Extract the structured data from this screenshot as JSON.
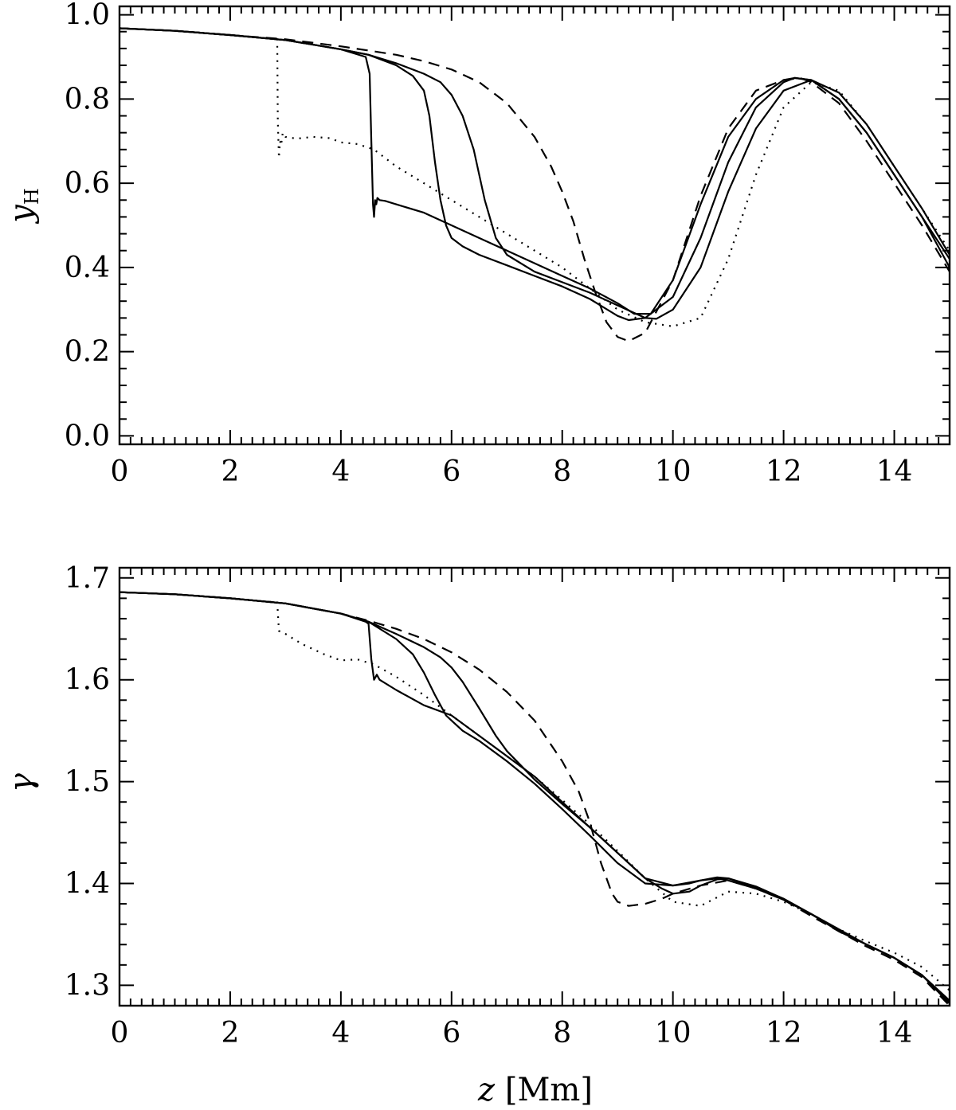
{
  "chart_data": [
    {
      "type": "line",
      "title": "",
      "xlabel": "",
      "ylabel": "y",
      "ylabel_subscript": "H",
      "xlim": [
        0,
        15
      ],
      "ylim": [
        -0.02,
        1.02
      ],
      "x_ticks": [
        0,
        2,
        4,
        6,
        8,
        10,
        12,
        14
      ],
      "x_tick_labels": [
        "0",
        "2",
        "4",
        "6",
        "8",
        "10",
        "12",
        "14"
      ],
      "y_ticks": [
        0.0,
        0.2,
        0.4,
        0.6,
        0.8,
        1.0
      ],
      "y_tick_labels": [
        "0.0",
        "0.2",
        "0.4",
        "0.6",
        "0.8",
        "1.0"
      ],
      "legend": "none",
      "grid": false,
      "series": [
        {
          "style": "dotted",
          "x": [
            0,
            1,
            2,
            2.85,
            2.86,
            2.88,
            2.9,
            2.92,
            2.95,
            3.0,
            3.2,
            3.5,
            3.8,
            4.0,
            4.3,
            4.6,
            5.0,
            5.5,
            6.0,
            6.5,
            7.0,
            7.5,
            8.0,
            8.5,
            9.0,
            9.5,
            10.0,
            10.5,
            11.0,
            11.5,
            12.0,
            12.5,
            13.0,
            13.5,
            14.0,
            14.5,
            15.0
          ],
          "y": [
            0.968,
            0.962,
            0.952,
            0.942,
            0.75,
            0.66,
            0.7,
            0.69,
            0.72,
            0.71,
            0.706,
            0.71,
            0.707,
            0.697,
            0.693,
            0.68,
            0.64,
            0.6,
            0.56,
            0.52,
            0.48,
            0.44,
            0.4,
            0.35,
            0.3,
            0.27,
            0.26,
            0.28,
            0.42,
            0.62,
            0.78,
            0.84,
            0.82,
            0.74,
            0.64,
            0.54,
            0.44
          ]
        },
        {
          "style": "solid",
          "x": [
            0,
            1,
            2,
            3,
            4,
            4.45,
            4.52,
            4.55,
            4.58,
            4.6,
            4.62,
            4.64,
            4.66,
            4.7,
            4.8,
            5.0,
            5.5,
            6.0,
            6.5,
            7.0,
            7.5,
            8.0,
            8.5,
            9.0,
            9.3,
            9.6,
            10.0,
            10.5,
            11.0,
            11.5,
            12.0,
            12.2,
            12.5,
            13.0,
            13.5,
            14.0,
            14.5,
            15.0
          ],
          "y": [
            0.968,
            0.962,
            0.952,
            0.94,
            0.918,
            0.9,
            0.86,
            0.7,
            0.55,
            0.52,
            0.56,
            0.55,
            0.565,
            0.56,
            0.558,
            0.55,
            0.53,
            0.5,
            0.47,
            0.44,
            0.41,
            0.38,
            0.35,
            0.315,
            0.29,
            0.29,
            0.37,
            0.55,
            0.71,
            0.8,
            0.845,
            0.85,
            0.845,
            0.8,
            0.72,
            0.62,
            0.52,
            0.4
          ]
        },
        {
          "style": "solid",
          "x": [
            0,
            1,
            2,
            3,
            4,
            4.5,
            5.0,
            5.3,
            5.5,
            5.6,
            5.7,
            5.8,
            5.9,
            6.0,
            6.2,
            6.5,
            7.0,
            7.5,
            8.0,
            8.5,
            9.0,
            9.2,
            9.5,
            10.0,
            10.5,
            11.0,
            11.5,
            12.0,
            12.2,
            12.5,
            13.0,
            13.5,
            14.0,
            14.5,
            15.0
          ],
          "y": [
            0.968,
            0.962,
            0.952,
            0.94,
            0.918,
            0.905,
            0.88,
            0.855,
            0.82,
            0.76,
            0.65,
            0.56,
            0.5,
            0.47,
            0.45,
            0.43,
            0.405,
            0.38,
            0.355,
            0.325,
            0.285,
            0.275,
            0.28,
            0.33,
            0.47,
            0.65,
            0.78,
            0.84,
            0.85,
            0.845,
            0.8,
            0.72,
            0.62,
            0.52,
            0.42
          ]
        },
        {
          "style": "solid",
          "x": [
            0,
            1,
            2,
            3,
            4,
            4.5,
            5.0,
            5.5,
            5.8,
            6.0,
            6.2,
            6.4,
            6.6,
            6.8,
            7.0,
            7.5,
            8.0,
            8.5,
            9.0,
            9.5,
            9.7,
            10.0,
            10.5,
            11.0,
            11.5,
            12.0,
            12.5,
            13.0,
            13.5,
            14.0,
            14.5,
            15.0
          ],
          "y": [
            0.968,
            0.962,
            0.952,
            0.94,
            0.918,
            0.905,
            0.885,
            0.86,
            0.84,
            0.81,
            0.76,
            0.68,
            0.56,
            0.47,
            0.43,
            0.39,
            0.365,
            0.34,
            0.31,
            0.28,
            0.278,
            0.3,
            0.4,
            0.58,
            0.73,
            0.82,
            0.845,
            0.815,
            0.74,
            0.64,
            0.54,
            0.43
          ]
        },
        {
          "style": "dashed",
          "x": [
            0,
            1,
            2,
            3,
            4,
            4.5,
            5.0,
            5.5,
            6.0,
            6.5,
            7.0,
            7.5,
            7.8,
            8.0,
            8.2,
            8.4,
            8.6,
            8.8,
            9.0,
            9.2,
            9.5,
            10.0,
            10.5,
            11.0,
            11.5,
            12.0,
            12.3,
            12.5,
            13.0,
            13.5,
            14.0,
            14.5,
            15.0
          ],
          "y": [
            0.968,
            0.962,
            0.952,
            0.942,
            0.925,
            0.915,
            0.905,
            0.89,
            0.87,
            0.84,
            0.79,
            0.71,
            0.64,
            0.58,
            0.51,
            0.42,
            0.34,
            0.27,
            0.235,
            0.225,
            0.245,
            0.37,
            0.57,
            0.73,
            0.82,
            0.845,
            0.85,
            0.84,
            0.79,
            0.7,
            0.6,
            0.5,
            0.39
          ]
        }
      ]
    },
    {
      "type": "line",
      "title": "",
      "xlabel": "z",
      "xlabel_unit": "[Mm]",
      "ylabel": "γ",
      "xlim": [
        0,
        15
      ],
      "ylim": [
        1.28,
        1.71
      ],
      "x_ticks": [
        0,
        2,
        4,
        6,
        8,
        10,
        12,
        14
      ],
      "x_tick_labels": [
        "0",
        "2",
        "4",
        "6",
        "8",
        "10",
        "12",
        "14"
      ],
      "y_ticks": [
        1.3,
        1.4,
        1.5,
        1.6,
        1.7
      ],
      "y_tick_labels": [
        "1.3",
        "1.4",
        "1.5",
        "1.6",
        "1.7"
      ],
      "legend": "none",
      "grid": false,
      "series": [
        {
          "style": "dotted",
          "x": [
            0,
            1,
            2,
            2.85,
            2.88,
            3.0,
            3.3,
            3.7,
            4.0,
            4.3,
            4.6,
            5.0,
            5.5,
            6.0,
            6.5,
            7.0,
            7.5,
            8.0,
            8.5,
            9.0,
            9.5,
            10.0,
            10.5,
            11.0,
            11.5,
            12.0,
            12.5,
            13.0,
            13.5,
            14.0,
            14.5,
            15.0
          ],
          "y": [
            1.686,
            1.684,
            1.68,
            1.676,
            1.648,
            1.645,
            1.635,
            1.625,
            1.619,
            1.62,
            1.615,
            1.603,
            1.585,
            1.565,
            1.545,
            1.525,
            1.505,
            1.482,
            1.458,
            1.432,
            1.405,
            1.382,
            1.378,
            1.392,
            1.39,
            1.382,
            1.37,
            1.355,
            1.343,
            1.332,
            1.318,
            1.295
          ]
        },
        {
          "style": "solid",
          "x": [
            0,
            1,
            2,
            3,
            4,
            4.45,
            4.5,
            4.55,
            4.6,
            4.65,
            4.7,
            5.0,
            5.5,
            6.0,
            6.5,
            7.0,
            7.5,
            8.0,
            8.5,
            9.0,
            9.5,
            10.0,
            10.5,
            10.8,
            11.0,
            11.5,
            12.0,
            12.5,
            13.0,
            13.5,
            14.0,
            14.5,
            15.0
          ],
          "y": [
            1.686,
            1.684,
            1.68,
            1.675,
            1.665,
            1.657,
            1.655,
            1.62,
            1.6,
            1.605,
            1.6,
            1.59,
            1.575,
            1.565,
            1.545,
            1.525,
            1.505,
            1.48,
            1.455,
            1.43,
            1.405,
            1.398,
            1.403,
            1.405,
            1.403,
            1.395,
            1.384,
            1.37,
            1.355,
            1.34,
            1.327,
            1.31,
            1.282
          ]
        },
        {
          "style": "solid",
          "x": [
            0,
            1,
            2,
            3,
            4,
            4.5,
            5.0,
            5.3,
            5.5,
            5.7,
            5.9,
            6.0,
            6.2,
            6.5,
            7.0,
            7.5,
            8.0,
            8.5,
            9.0,
            9.5,
            10.0,
            10.3,
            10.5,
            10.8,
            11.0,
            11.5,
            12.0,
            12.5,
            13.0,
            13.5,
            14.0,
            14.5,
            15.0
          ],
          "y": [
            1.686,
            1.684,
            1.68,
            1.675,
            1.665,
            1.657,
            1.64,
            1.625,
            1.607,
            1.585,
            1.565,
            1.56,
            1.55,
            1.54,
            1.52,
            1.498,
            1.473,
            1.447,
            1.42,
            1.4,
            1.398,
            1.4,
            1.403,
            1.406,
            1.405,
            1.396,
            1.385,
            1.37,
            1.353,
            1.34,
            1.327,
            1.31,
            1.283
          ]
        },
        {
          "style": "solid",
          "x": [
            0,
            1,
            2,
            3,
            4,
            4.5,
            5.0,
            5.5,
            5.8,
            6.0,
            6.2,
            6.5,
            6.8,
            7.0,
            7.5,
            8.0,
            8.5,
            9.0,
            9.5,
            9.8,
            10.0,
            10.3,
            10.5,
            10.8,
            11.0,
            11.5,
            12.0,
            12.5,
            13.0,
            13.5,
            14.0,
            14.5,
            15.0
          ],
          "y": [
            1.686,
            1.684,
            1.68,
            1.675,
            1.665,
            1.657,
            1.645,
            1.632,
            1.622,
            1.612,
            1.598,
            1.572,
            1.545,
            1.53,
            1.502,
            1.478,
            1.455,
            1.43,
            1.405,
            1.395,
            1.39,
            1.392,
            1.398,
            1.404,
            1.405,
            1.397,
            1.385,
            1.37,
            1.354,
            1.34,
            1.327,
            1.31,
            1.285
          ]
        },
        {
          "style": "dashed",
          "x": [
            0,
            1,
            2,
            3,
            4,
            4.5,
            5.0,
            5.5,
            6.0,
            6.5,
            7.0,
            7.5,
            8.0,
            8.3,
            8.5,
            8.7,
            8.9,
            9.0,
            9.2,
            9.5,
            9.8,
            10.0,
            10.5,
            11.0,
            11.5,
            12.0,
            12.5,
            13.0,
            13.5,
            14.0,
            14.5,
            15.0
          ],
          "y": [
            1.686,
            1.684,
            1.68,
            1.675,
            1.665,
            1.658,
            1.65,
            1.64,
            1.627,
            1.61,
            1.588,
            1.56,
            1.52,
            1.49,
            1.46,
            1.42,
            1.39,
            1.382,
            1.378,
            1.38,
            1.385,
            1.39,
            1.398,
            1.403,
            1.395,
            1.384,
            1.368,
            1.353,
            1.338,
            1.325,
            1.308,
            1.28
          ]
        }
      ]
    }
  ]
}
